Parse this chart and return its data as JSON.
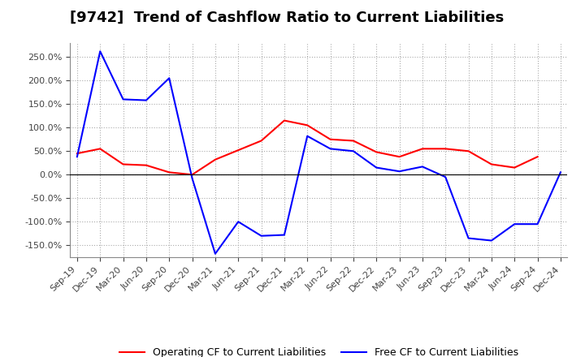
{
  "title": "[9742]  Trend of Cashflow Ratio to Current Liabilities",
  "x_labels": [
    "Sep-19",
    "Dec-19",
    "Mar-20",
    "Jun-20",
    "Sep-20",
    "Dec-20",
    "Mar-21",
    "Jun-21",
    "Sep-21",
    "Dec-21",
    "Mar-22",
    "Jun-22",
    "Sep-22",
    "Dec-22",
    "Mar-23",
    "Jun-23",
    "Sep-23",
    "Dec-23",
    "Mar-24",
    "Jun-24",
    "Sep-24",
    "Dec-24"
  ],
  "operating_cf": [
    45,
    55,
    22,
    20,
    5,
    0,
    32,
    52,
    72,
    115,
    105,
    75,
    72,
    48,
    38,
    55,
    55,
    50,
    22,
    15,
    38,
    null
  ],
  "free_cf": [
    38,
    262,
    160,
    158,
    205,
    -8,
    -168,
    -100,
    -130,
    -128,
    82,
    55,
    50,
    15,
    7,
    17,
    -5,
    -135,
    -140,
    -105,
    -105,
    5
  ],
  "ylim": [
    -175,
    280
  ],
  "yticks": [
    -150,
    -100,
    -50,
    0,
    50,
    100,
    150,
    200,
    250
  ],
  "operating_color": "#FF0000",
  "free_color": "#0000FF",
  "background_color": "#FFFFFF",
  "grid_color": "#AAAAAA",
  "legend_op": "Operating CF to Current Liabilities",
  "legend_free": "Free CF to Current Liabilities",
  "title_fontsize": 13,
  "tick_fontsize": 8
}
